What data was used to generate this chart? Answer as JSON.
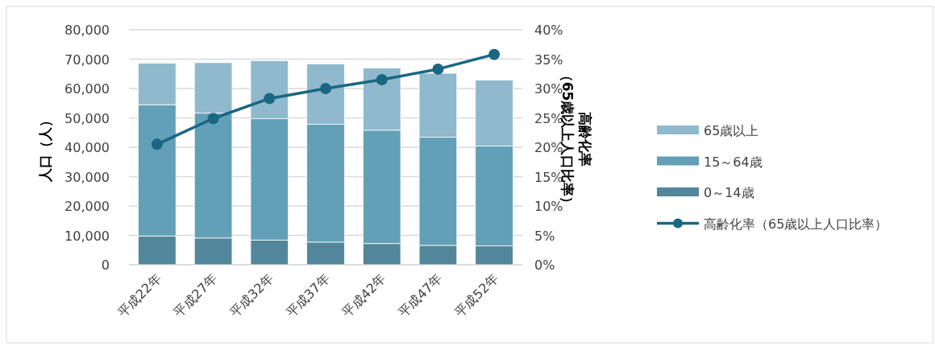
{
  "chart_data": {
    "type": "bar",
    "stacked": true,
    "ylabel": "人口（人）",
    "y2label": "高齢化率（65歳以上人口比率）",
    "categories": [
      "平成22年",
      "平成27年",
      "平成32年",
      "平成37年",
      "平成42年",
      "平成47年",
      "平成52年"
    ],
    "series": [
      {
        "name": "0～14歳",
        "color": "#52869b",
        "values": [
          9800,
          9100,
          8400,
          7700,
          7200,
          6600,
          6400
        ]
      },
      {
        "name": "15～64歳",
        "color": "#62a0b7",
        "values": [
          44700,
          42500,
          41300,
          40100,
          38600,
          36800,
          34000
        ]
      },
      {
        "name": "65歳以上",
        "color": "#8fb9cc",
        "values": [
          14100,
          17200,
          19800,
          20600,
          21200,
          21800,
          22500
        ]
      },
      {
        "name": "高齢化率（65歳以上人口比率）",
        "type": "line",
        "axis": "y2",
        "color": "#1a6782",
        "marker": "circle",
        "values": [
          20.5,
          24.9,
          28.3,
          30.0,
          31.5,
          33.3,
          35.8
        ]
      }
    ],
    "ylim": [
      0,
      80000
    ],
    "yticks": [
      {
        "value": 0,
        "label": "0"
      },
      {
        "value": 10000,
        "label": "10,000"
      },
      {
        "value": 20000,
        "label": "20,000"
      },
      {
        "value": 30000,
        "label": "30,000"
      },
      {
        "value": 40000,
        "label": "40,000"
      },
      {
        "value": 50000,
        "label": "50,000"
      },
      {
        "value": 60000,
        "label": "60,000"
      },
      {
        "value": 70000,
        "label": "70,000"
      },
      {
        "value": 80000,
        "label": "80,000"
      }
    ],
    "y2lim": [
      0,
      40
    ],
    "y2ticks": [
      {
        "value": 0,
        "label": "0%"
      },
      {
        "value": 5,
        "label": "5%"
      },
      {
        "value": 10,
        "label": "10%"
      },
      {
        "value": 15,
        "label": "15%"
      },
      {
        "value": 20,
        "label": "20%"
      },
      {
        "value": 25,
        "label": "25%"
      },
      {
        "value": 30,
        "label": "30%"
      },
      {
        "value": 35,
        "label": "35%"
      },
      {
        "value": 40,
        "label": "40%"
      }
    ],
    "grid": "y",
    "legend": "right"
  }
}
